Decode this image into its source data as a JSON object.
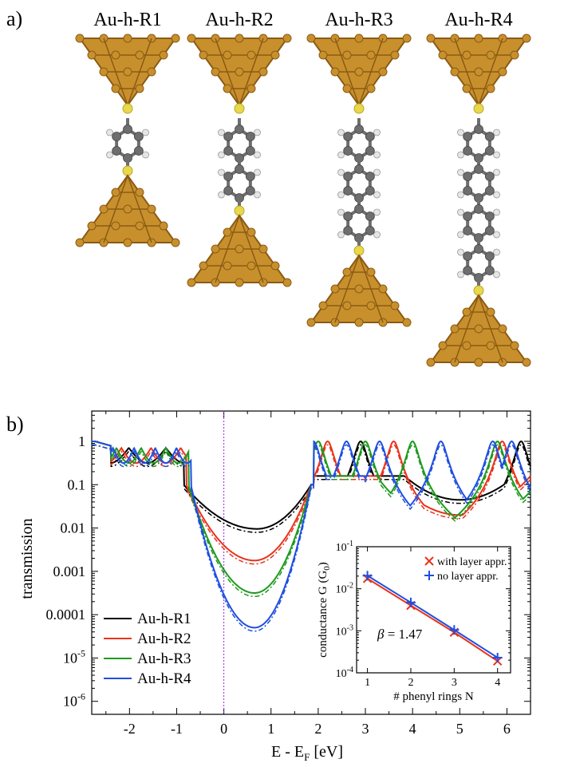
{
  "panel_a": {
    "label": "a)",
    "structures": [
      {
        "name": "Au-h-R1",
        "rings": 1
      },
      {
        "name": "Au-h-R2",
        "rings": 2
      },
      {
        "name": "Au-h-R3",
        "rings": 3
      },
      {
        "name": "Au-h-R4",
        "rings": 4
      }
    ],
    "colors": {
      "gold": "#c8902c",
      "gold_dark": "#8a5a14",
      "sulfur": "#e8d84a",
      "carbon": "#6e6e6e",
      "hydrogen": "#e6e6e6"
    }
  },
  "chart_data": [
    {
      "type": "line",
      "panel_label": "b)",
      "xlabel": "E - E",
      "xlabel_sub": "F",
      "xlabel_unit": " [eV]",
      "ylabel": "transmission",
      "xlim": [
        -2.8,
        6.5
      ],
      "ylim_log10": [
        -6.3,
        0.7
      ],
      "y_scale": "log",
      "x_ticks": [
        -2,
        -1,
        0,
        1,
        2,
        3,
        4,
        5,
        6
      ],
      "x_tick_labels": [
        "-2",
        "-1",
        "0",
        "1",
        "2",
        "3",
        "4",
        "5",
        "6"
      ],
      "y_ticks_log10": [
        0,
        -1,
        -2,
        -3,
        -4,
        -5,
        -6
      ],
      "y_tick_labels": [
        {
          "text": "1"
        },
        {
          "text": "0.1"
        },
        {
          "text": "0.01"
        },
        {
          "text": "0.001"
        },
        {
          "text": "0.0001"
        },
        {
          "base": "10",
          "exp": "-5"
        },
        {
          "base": "10",
          "exp": "-6"
        }
      ],
      "fermi_line_x": 0,
      "fermi_line_color": "#a020f0",
      "legend_position": "bottom-left",
      "legend": [
        "Au-h-R1",
        "Au-h-R2",
        "Au-h-R3",
        "Au-h-R4"
      ],
      "series": [
        {
          "name": "Au-h-R1",
          "color": "#000000",
          "gap_min_x": 0.7,
          "gap_min_log10": -2.02,
          "homo_edge": -0.85,
          "lumo_peaks": [
            2.9
          ],
          "high_peaks": [
            6.3
          ],
          "dip2_x": 5.0,
          "dip2_log10": -1.35
        },
        {
          "name": "Au-h-R2",
          "color": "#e8331c",
          "gap_min_x": 0.65,
          "gap_min_log10": -2.75,
          "homo_edge": -0.8,
          "lumo_peaks": [
            2.2,
            3.6
          ],
          "high_peaks": [
            5.9
          ],
          "dip2_x": 5.0,
          "dip2_log10": -1.7
        },
        {
          "name": "Au-h-R3",
          "color": "#1e9a1e",
          "gap_min_x": 0.65,
          "gap_min_log10": -3.5,
          "homo_edge": -0.75,
          "lumo_peaks": [
            2.0,
            3.0,
            4.0
          ],
          "high_peaks": [
            5.8
          ],
          "dip2_x": 5.0,
          "dip2_log10": -2.05
        },
        {
          "name": "Au-h-R4",
          "color": "#1f4fe0",
          "gap_min_x": 0.65,
          "gap_min_log10": -4.3,
          "homo_edge": -0.7,
          "lumo_peaks": [
            1.9,
            2.6,
            3.3,
            4.6
          ],
          "high_peaks": [
            5.7,
            6.1
          ],
          "dip2_x": 5.0,
          "dip2_log10": -2.45
        }
      ]
    },
    {
      "type": "scatter",
      "xlabel": "# phenyl rings N",
      "ylabel": "conductance G (G",
      "ylabel_sub": "0",
      "ylabel_end": ")",
      "xlim": [
        0.75,
        4.3
      ],
      "ylim_log10": [
        -4,
        -1
      ],
      "y_scale": "log",
      "x_ticks": [
        1,
        2,
        3,
        4
      ],
      "x_tick_labels": [
        "1",
        "2",
        "3",
        "4"
      ],
      "y_tick_labels": [
        {
          "base": "10",
          "exp": "-1",
          "log10": -1
        },
        {
          "base": "10",
          "exp": "-2",
          "log10": -2
        },
        {
          "base": "10",
          "exp": "-3",
          "log10": -3
        },
        {
          "base": "10",
          "exp": "-4",
          "log10": -4
        }
      ],
      "annotation": {
        "symbol": "β",
        "text": " = 1.47"
      },
      "legend_position": "top-right",
      "series": [
        {
          "name": "with layer appr.",
          "marker": "×",
          "color": "#e8331c",
          "x": [
            1,
            2,
            3,
            4
          ],
          "y": [
            0.0175,
            0.004,
            0.00092,
            0.00019
          ]
        },
        {
          "name": "no layer appr.",
          "marker": "+",
          "color": "#1f4fe0",
          "x": [
            1,
            2,
            3,
            4
          ],
          "y": [
            0.0205,
            0.0047,
            0.00105,
            0.00023
          ]
        }
      ]
    }
  ]
}
